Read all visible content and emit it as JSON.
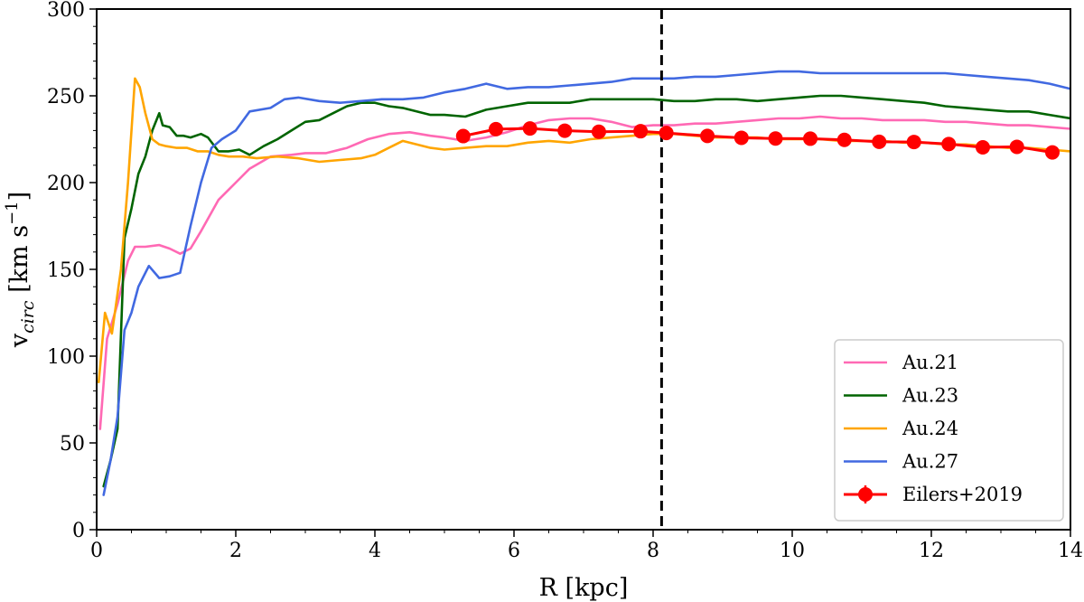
{
  "chart_data": {
    "type": "line",
    "xlabel": "R [kpc]",
    "ylabel": {
      "main": "v",
      "sub": "circ",
      "unit_open": " [km s",
      "sup": "−1",
      "unit_close": "]"
    },
    "xlim": [
      0,
      14
    ],
    "ylim": [
      0,
      300
    ],
    "xticks": [
      0,
      2,
      4,
      6,
      8,
      10,
      12,
      14
    ],
    "yticks": [
      0,
      50,
      100,
      150,
      200,
      250,
      300
    ],
    "vline": {
      "x": 8.122,
      "style": "dashed",
      "color": "#000000"
    },
    "legend_position": "lower right",
    "series": [
      {
        "name": "Au.21",
        "color": "#ff69b4",
        "x": [
          0.05,
          0.15,
          0.3,
          0.45,
          0.55,
          0.7,
          0.9,
          1.05,
          1.2,
          1.35,
          1.5,
          1.75,
          2.0,
          2.2,
          2.5,
          2.8,
          3.0,
          3.3,
          3.6,
          3.9,
          4.2,
          4.5,
          4.8,
          5.0,
          5.3,
          5.6,
          5.9,
          6.2,
          6.5,
          6.8,
          7.1,
          7.4,
          7.7,
          8.0,
          8.3,
          8.6,
          8.9,
          9.2,
          9.5,
          9.8,
          10.1,
          10.4,
          10.7,
          11.0,
          11.3,
          11.6,
          11.9,
          12.2,
          12.5,
          12.8,
          13.1,
          13.4,
          13.7,
          14.0
        ],
        "values": [
          58,
          110,
          130,
          155,
          163,
          163,
          164,
          162,
          159,
          162,
          172,
          190,
          200,
          208,
          215,
          216,
          217,
          217,
          220,
          225,
          228,
          229,
          227,
          226,
          224,
          226,
          229,
          233,
          236,
          237,
          237,
          235,
          232,
          233,
          233,
          234,
          234,
          235,
          236,
          237,
          237,
          238,
          237,
          237,
          236,
          236,
          236,
          235,
          235,
          234,
          233,
          233,
          232,
          231
        ]
      },
      {
        "name": "Au.23",
        "color": "#006400",
        "x": [
          0.1,
          0.2,
          0.3,
          0.4,
          0.5,
          0.6,
          0.7,
          0.8,
          0.9,
          0.95,
          1.05,
          1.15,
          1.25,
          1.35,
          1.5,
          1.6,
          1.75,
          1.9,
          2.05,
          2.2,
          2.4,
          2.6,
          2.8,
          3.0,
          3.2,
          3.4,
          3.6,
          3.8,
          4.0,
          4.2,
          4.4,
          4.6,
          4.8,
          5.0,
          5.3,
          5.6,
          5.9,
          6.2,
          6.5,
          6.8,
          7.1,
          7.4,
          7.7,
          8.0,
          8.3,
          8.6,
          8.9,
          9.2,
          9.5,
          9.8,
          10.1,
          10.4,
          10.7,
          11.0,
          11.3,
          11.6,
          11.9,
          12.2,
          12.5,
          12.8,
          13.1,
          13.4,
          13.7,
          14.0
        ],
        "values": [
          25,
          40,
          58,
          168,
          185,
          205,
          215,
          230,
          240,
          233,
          232,
          227,
          227,
          226,
          228,
          226,
          218,
          218,
          219,
          216,
          221,
          225,
          230,
          235,
          236,
          240,
          244,
          246,
          246,
          244,
          243,
          241,
          239,
          239,
          238,
          242,
          244,
          246,
          246,
          246,
          248,
          248,
          248,
          248,
          247,
          247,
          248,
          248,
          247,
          248,
          249,
          250,
          250,
          249,
          248,
          247,
          246,
          244,
          243,
          242,
          241,
          241,
          239,
          237
        ]
      },
      {
        "name": "Au.24",
        "color": "#ffa500",
        "x": [
          0.03,
          0.12,
          0.22,
          0.35,
          0.45,
          0.55,
          0.62,
          0.7,
          0.8,
          0.9,
          1.0,
          1.15,
          1.3,
          1.45,
          1.6,
          1.75,
          1.9,
          2.1,
          2.3,
          2.6,
          2.9,
          3.2,
          3.5,
          3.8,
          4.0,
          4.2,
          4.4,
          4.6,
          4.8,
          5.0,
          5.3,
          5.6,
          5.9,
          6.2,
          6.5,
          6.8,
          7.1,
          7.4,
          7.7,
          8.0,
          8.3,
          8.6,
          8.9,
          9.2,
          9.5,
          9.8,
          10.1,
          10.4,
          10.7,
          11.0,
          11.3,
          11.6,
          11.9,
          12.2,
          12.5,
          12.8,
          13.1,
          13.4,
          13.7,
          14.0
        ],
        "values": [
          85,
          125,
          113,
          150,
          200,
          260,
          255,
          240,
          225,
          222,
          221,
          220,
          220,
          218,
          218,
          216,
          215,
          215,
          214,
          215,
          214,
          212,
          213,
          214,
          216,
          220,
          224,
          222,
          220,
          219,
          220,
          221,
          221,
          223,
          224,
          223,
          225,
          226,
          227,
          228,
          228,
          227,
          226,
          226,
          226,
          225,
          225,
          225,
          224,
          224,
          224,
          223,
          223,
          222,
          222,
          221,
          220,
          220,
          219,
          218
        ]
      },
      {
        "name": "Au.27",
        "color": "#4169e1",
        "x": [
          0.1,
          0.2,
          0.3,
          0.4,
          0.5,
          0.6,
          0.75,
          0.9,
          1.05,
          1.2,
          1.35,
          1.5,
          1.65,
          1.8,
          2.0,
          2.2,
          2.5,
          2.7,
          2.9,
          3.2,
          3.5,
          3.8,
          4.1,
          4.4,
          4.7,
          5.0,
          5.3,
          5.6,
          5.9,
          6.2,
          6.5,
          6.8,
          7.1,
          7.4,
          7.7,
          8.0,
          8.3,
          8.6,
          8.9,
          9.2,
          9.5,
          9.8,
          10.1,
          10.4,
          10.7,
          11.0,
          11.3,
          11.6,
          11.9,
          12.2,
          12.5,
          12.8,
          13.1,
          13.4,
          13.7,
          14.0
        ],
        "values": [
          20,
          40,
          65,
          115,
          125,
          140,
          152,
          145,
          146,
          148,
          175,
          200,
          220,
          225,
          230,
          241,
          243,
          248,
          249,
          247,
          246,
          247,
          248,
          248,
          249,
          252,
          254,
          257,
          254,
          255,
          255,
          256,
          257,
          258,
          260,
          260,
          260,
          261,
          261,
          262,
          263,
          264,
          264,
          263,
          263,
          263,
          263,
          263,
          263,
          263,
          262,
          261,
          260,
          259,
          257,
          254
        ]
      }
    ],
    "observed": {
      "name": "Eilers+2019",
      "color": "#ff0000",
      "x": [
        5.27,
        5.74,
        6.23,
        6.73,
        7.22,
        7.82,
        8.19,
        8.78,
        9.27,
        9.76,
        10.26,
        10.75,
        11.25,
        11.75,
        12.25,
        12.74,
        13.23,
        13.74
      ],
      "values": [
        226.8,
        230.8,
        231.2,
        229.9,
        229.3,
        229.6,
        228.6,
        226.9,
        225.8,
        225.4,
        225.3,
        224.6,
        223.5,
        223.4,
        222.2,
        220.3,
        220.6,
        217.4
      ]
    },
    "legend": [
      "Au.21",
      "Au.23",
      "Au.24",
      "Au.27",
      "Eilers+2019"
    ]
  }
}
